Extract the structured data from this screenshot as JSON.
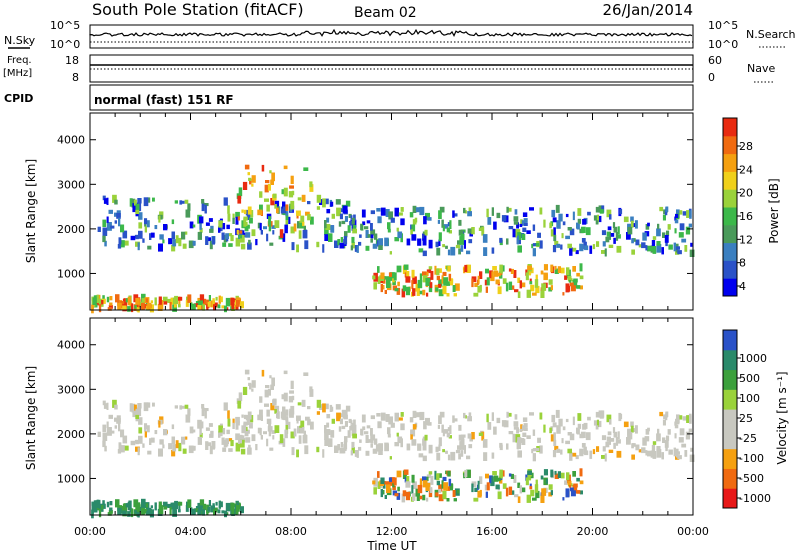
{
  "header": {
    "title": "South Pole Station (fitACF)",
    "beam": "Beam 02",
    "date": "26/Jan/2014"
  },
  "status_panels": {
    "nsky_label": "N.Sky",
    "nsky_ticks": [
      "10^5",
      "10^0"
    ],
    "nsearch_label": "N.Search",
    "nsearch_ticks": [
      "10^5",
      "10^0"
    ],
    "freq_label_top": "Freq.",
    "freq_label_unit": "[MHz]",
    "freq_ticks": [
      "18",
      "8"
    ],
    "nave_label": "Nave",
    "nave_ticks": [
      "60",
      "0"
    ],
    "cpid_label": "CPID",
    "cpid_text": "normal (fast) 151 RF"
  },
  "chart_data": [
    {
      "type": "heatmap",
      "panel": "power",
      "ylabel": "Slant Range [km]",
      "xlabel": "",
      "yticks": [
        1000,
        2000,
        3000,
        4000
      ],
      "ylim": [
        180,
        4600
      ],
      "xlim": [
        0,
        24
      ],
      "x_tick_labels": [
        "00:00",
        "04:00",
        "08:00",
        "12:00",
        "16:00",
        "20:00",
        "00:00"
      ],
      "colorbar": {
        "label": "Power [dB]",
        "ticks": [
          "28",
          "24",
          "20",
          "16",
          "12",
          "8",
          "4"
        ],
        "range": [
          0,
          30
        ],
        "colors": [
          "#0000ee",
          "#2a52c8",
          "#3a7fc0",
          "#4a9a5a",
          "#3cb84a",
          "#9ad23a",
          "#f0d01a",
          "#f5a010",
          "#f06a10",
          "#e82a10"
        ]
      },
      "bands": [
        {
          "t0": 0.3,
          "t1": 10.6,
          "r0": 1550,
          "r1": 2700,
          "level": "medium"
        },
        {
          "t0": 5.8,
          "t1": 8.8,
          "r0": 1800,
          "r1": 3400,
          "level": "high"
        },
        {
          "t0": 9.8,
          "t1": 23.9,
          "r0": 1450,
          "r1": 2450,
          "level": "medium"
        },
        {
          "t0": 11.2,
          "t1": 19.5,
          "r0": 520,
          "r1": 1150,
          "level": "high"
        },
        {
          "t0": 0.0,
          "t1": 6.0,
          "r0": 200,
          "r1": 450,
          "level": "high"
        }
      ]
    },
    {
      "type": "heatmap",
      "panel": "velocity",
      "ylabel": "Slant Range [km]",
      "xlabel": "Time UT",
      "yticks": [
        1000,
        2000,
        3000,
        4000
      ],
      "ylim": [
        180,
        4600
      ],
      "xlim": [
        0,
        24
      ],
      "x_tick_labels": [
        "00:00",
        "04:00",
        "08:00",
        "12:00",
        "16:00",
        "20:00",
        "00:00"
      ],
      "colorbar": {
        "label": "Velocity [m s⁻¹]",
        "ticks": [
          "1000",
          "500",
          "100",
          "25",
          "-25",
          "-100",
          "-500",
          "-1000"
        ],
        "range": [
          -1200,
          1200
        ],
        "colors": [
          "#e81818",
          "#f06a10",
          "#f5a010",
          "#c8c8c0",
          "#c8c8c0",
          "#9ad23a",
          "#3ca03c",
          "#2a8a6a",
          "#2a52c8"
        ]
      },
      "bands": [
        {
          "t0": 0.3,
          "t1": 10.6,
          "r0": 1550,
          "r1": 2700,
          "level": "near_zero"
        },
        {
          "t0": 5.8,
          "t1": 8.8,
          "r0": 1800,
          "r1": 3400,
          "level": "near_zero"
        },
        {
          "t0": 9.8,
          "t1": 23.9,
          "r0": 1450,
          "r1": 2450,
          "level": "near_zero"
        },
        {
          "t0": 11.2,
          "t1": 19.5,
          "r0": 520,
          "r1": 1150,
          "level": "mixed"
        },
        {
          "t0": 0.0,
          "t1": 6.0,
          "r0": 200,
          "r1": 450,
          "level": "positive"
        }
      ]
    }
  ]
}
